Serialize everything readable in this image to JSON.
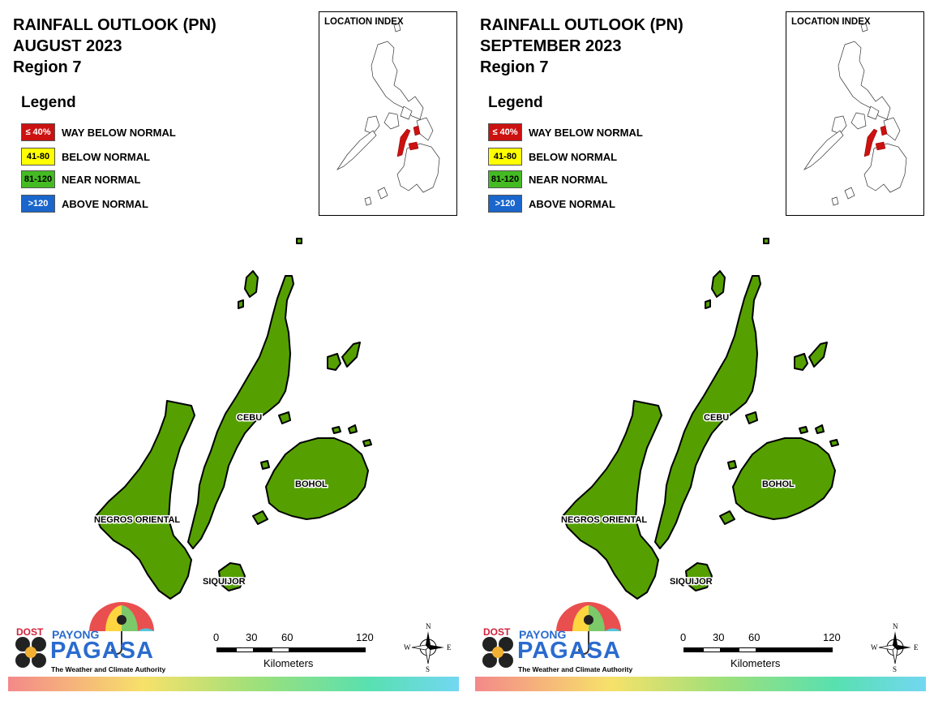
{
  "legend": {
    "heading": "Legend",
    "items": [
      {
        "code": "≤ 40%",
        "label": "WAY BELOW NORMAL",
        "color": "#cc1111",
        "text_color": "#ffffff"
      },
      {
        "code": "41-80",
        "label": "BELOW NORMAL",
        "color": "#ffff00",
        "text_color": "#000000"
      },
      {
        "code": "81-120",
        "label": "NEAR NORMAL",
        "color": "#44bb22",
        "text_color": "#000000"
      },
      {
        "code": ">120",
        "label": "ABOVE NORMAL",
        "color": "#1a66cc",
        "text_color": "#ffffff"
      }
    ]
  },
  "location_index_title": "LOCATION INDEX",
  "map_labels": {
    "cebu": "CEBU",
    "bohol": "BOHOL",
    "negros_oriental": "NEGROS ORIENTAL",
    "siquijor": "SIQUIJOR"
  },
  "map_fill_color": "#55a000",
  "index_highlight_color": "#cc1111",
  "scale": {
    "ticks": [
      "0",
      "30",
      "60",
      "120"
    ],
    "unit": "Kilometers"
  },
  "compass": {
    "n": "N",
    "s": "S",
    "e": "E",
    "w": "W"
  },
  "logo": {
    "agency": "DOST",
    "name_top": "PAYONG",
    "name_main": "PAGASA",
    "tagline": "The Weather and Climate Authority"
  },
  "panels": [
    {
      "title": "RAINFALL OUTLOOK (PN)",
      "month": "AUGUST 2023",
      "region": "Region 7",
      "category": "NEAR NORMAL"
    },
    {
      "title": "RAINFALL OUTLOOK (PN)",
      "month": "SEPTEMBER 2023",
      "region": "Region 7",
      "category": "NEAR NORMAL"
    }
  ]
}
